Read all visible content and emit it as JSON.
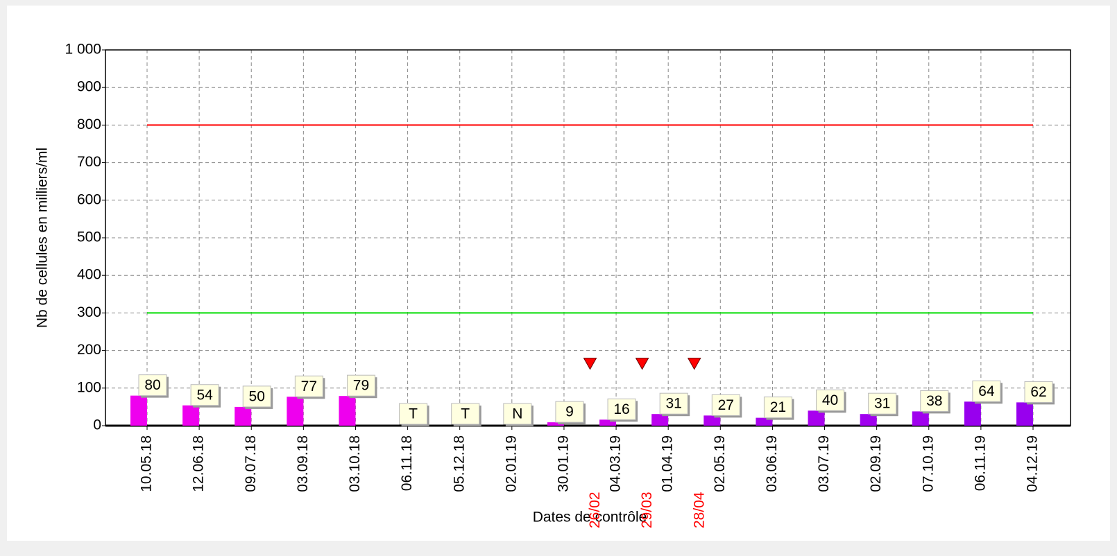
{
  "chart_data": {
    "type": "bar",
    "y_axis_label": "Nb de cellules en milliers/ml",
    "x_axis_label": "Dates de contrôle",
    "categories": [
      "10.05.18",
      "12.06.18",
      "09.07.18",
      "03.09.18",
      "03.10.18",
      "06.11.18",
      "05.12.18",
      "02.01.19",
      "30.01.19",
      "04.03.19",
      "01.04.19",
      "02.05.19",
      "03.06.19",
      "03.07.19",
      "02.09.19",
      "07.10.19",
      "06.11.19",
      "04.12.19"
    ],
    "values": [
      80,
      54,
      50,
      77,
      79,
      null,
      null,
      null,
      9,
      16,
      31,
      27,
      21,
      40,
      31,
      38,
      64,
      62
    ],
    "value_labels": [
      "80",
      "54",
      "50",
      "77",
      "79",
      "T",
      "T",
      "N",
      "9",
      "16",
      "31",
      "27",
      "21",
      "40",
      "31",
      "38",
      "64",
      "62"
    ],
    "colors": [
      "#ee00ee",
      "#ee00ee",
      "#ee00ee",
      "#ee00ee",
      "#ee00ee",
      "#ee00ee",
      "#ee00ee",
      "#ee00ee",
      "#dd00ee",
      "#cc00ee",
      "#bb00ee",
      "#b000ee",
      "#a800ee",
      "#a800ee",
      "#a000ee",
      "#a000ee",
      "#9800ee",
      "#9800ee"
    ],
    "thresholds": [
      {
        "value": 800,
        "color": "#ff0000"
      },
      {
        "value": 300,
        "color": "#00dd00"
      }
    ],
    "events": [
      {
        "label": "26/02",
        "x": 8.5,
        "value": 165
      },
      {
        "label": "29/03",
        "x": 9.5,
        "value": 165
      },
      {
        "label": "28/04",
        "x": 10.5,
        "value": 165
      }
    ],
    "event_color": "#ff0000",
    "ylim": [
      0,
      1000
    ],
    "yticks": [
      0,
      100,
      200,
      300,
      400,
      500,
      600,
      700,
      800,
      900,
      {
        "value": 1000,
        "label": "1 000"
      }
    ],
    "grid": true
  }
}
